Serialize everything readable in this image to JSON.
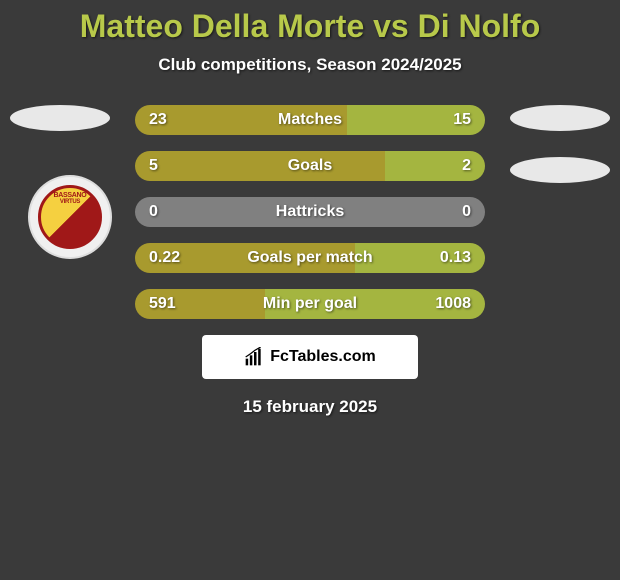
{
  "title": {
    "text": "Matteo Della Morte vs Di Nolfo",
    "color": "#b8c94a",
    "fontsize": 32
  },
  "subtitle": {
    "text": "Club competitions, Season 2024/2025",
    "fontsize": 17
  },
  "badge": {
    "line1": "BASSANO",
    "line2": "VIRTUS"
  },
  "colors": {
    "background": "#3a3a3a",
    "bar_left": "#a89a2e",
    "bar_right": "#a4b540",
    "bar_neutral": "#808080",
    "ellipse": "#e8e8e8"
  },
  "bars": [
    {
      "label": "Matches",
      "left_val": "23",
      "right_val": "15",
      "left_pct": 60.5,
      "right_pct": 39.5,
      "fontsize": 16
    },
    {
      "label": "Goals",
      "left_val": "5",
      "right_val": "2",
      "left_pct": 71.4,
      "right_pct": 28.6,
      "fontsize": 16
    },
    {
      "label": "Hattricks",
      "left_val": "0",
      "right_val": "0",
      "left_pct": 0,
      "right_pct": 0,
      "fontsize": 16,
      "neutral": true
    },
    {
      "label": "Goals per match",
      "left_val": "0.22",
      "right_val": "0.13",
      "left_pct": 62.9,
      "right_pct": 37.1,
      "fontsize": 16
    },
    {
      "label": "Min per goal",
      "left_val": "591",
      "right_val": "1008",
      "left_pct": 37.0,
      "right_pct": 63.0,
      "fontsize": 16
    }
  ],
  "footer": {
    "brand": "FcTables.com",
    "date": "15 february 2025",
    "date_fontsize": 17
  }
}
